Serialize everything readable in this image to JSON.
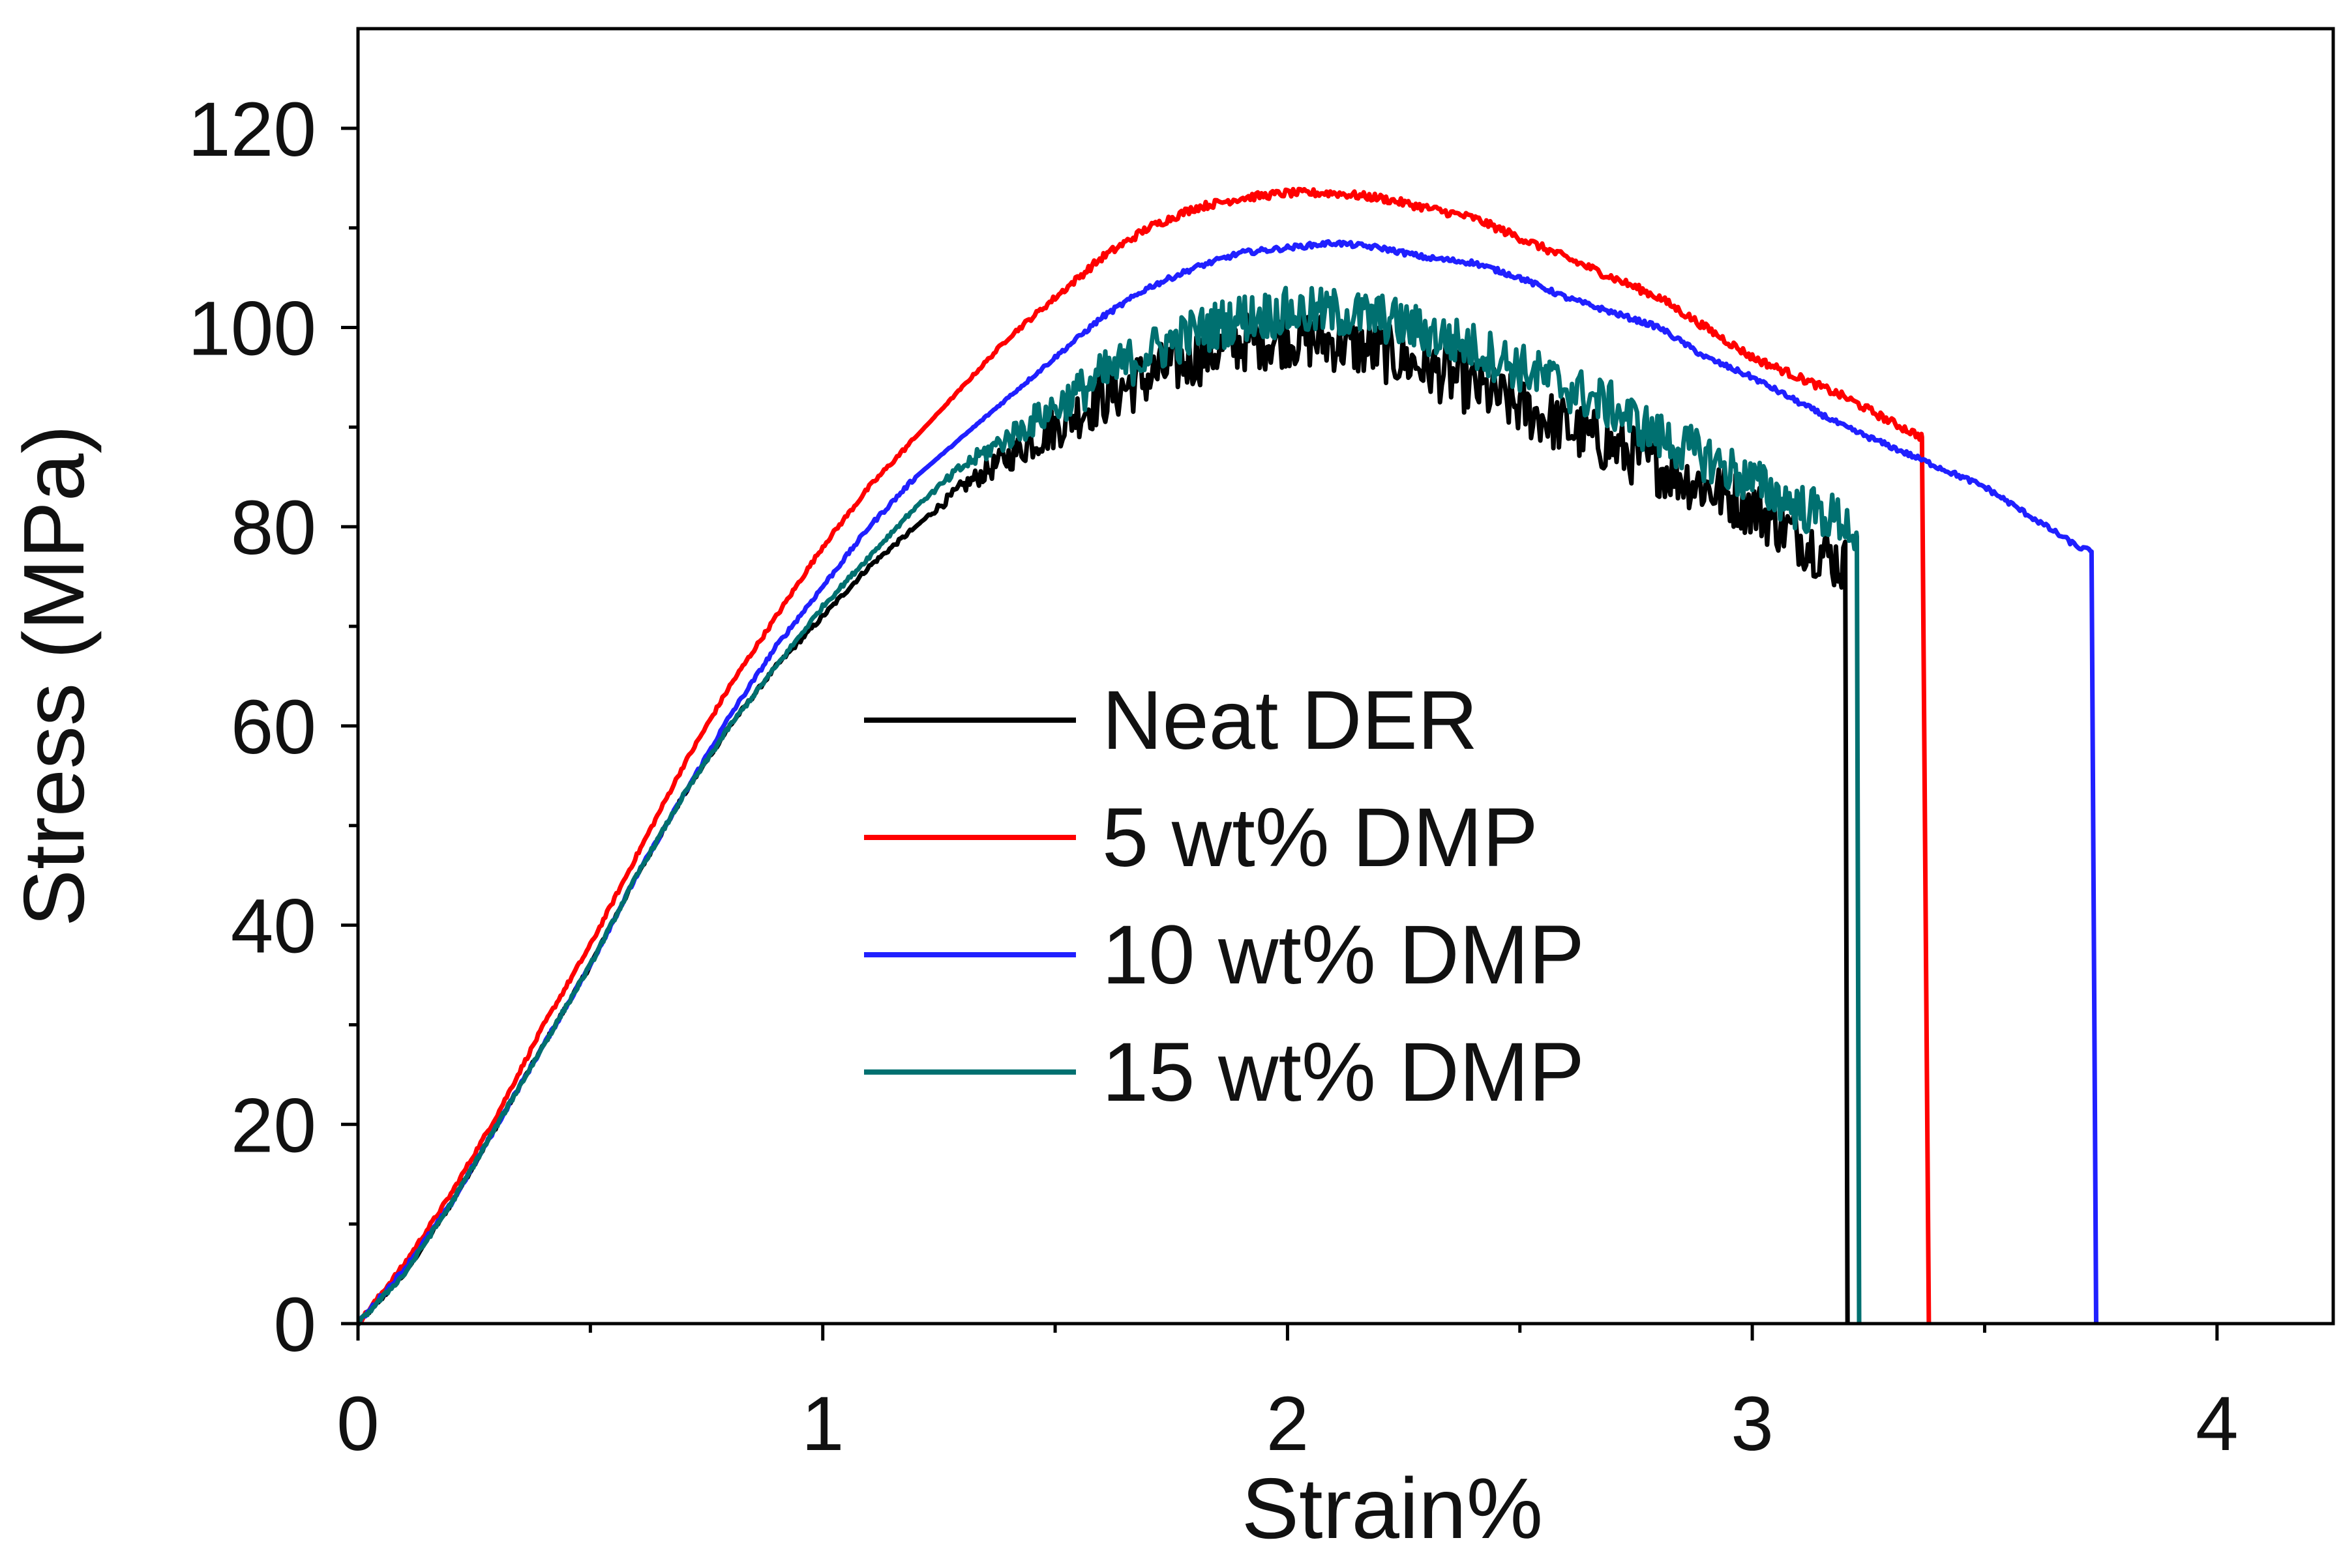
{
  "chart_data": {
    "type": "line",
    "title": "",
    "xlabel": "Strain%",
    "ylabel": "Stress (MPa)",
    "xlim": [
      0,
      4.25
    ],
    "ylim": [
      0,
      130
    ],
    "xticks": [
      0,
      1,
      2,
      3,
      4
    ],
    "xtick_labels": [
      "0",
      "1",
      "2",
      "3",
      "4"
    ],
    "yticks": [
      0,
      20,
      40,
      60,
      80,
      100,
      120
    ],
    "ytick_labels": [
      "0",
      "20",
      "40",
      "60",
      "80",
      "100",
      "120"
    ],
    "grid": false,
    "legend_position": "center",
    "series": [
      {
        "name": "Neat DER",
        "color": "#000000",
        "noise": 3.0,
        "points": [
          [
            0,
            0
          ],
          [
            0.1,
            5
          ],
          [
            0.2,
            12
          ],
          [
            0.3,
            20
          ],
          [
            0.4,
            28
          ],
          [
            0.5,
            36
          ],
          [
            0.6,
            45
          ],
          [
            0.7,
            53
          ],
          [
            0.8,
            60
          ],
          [
            0.9,
            66
          ],
          [
            1.0,
            71
          ],
          [
            1.1,
            76
          ],
          [
            1.2,
            80
          ],
          [
            1.3,
            84
          ],
          [
            1.4,
            87
          ],
          [
            1.5,
            90
          ],
          [
            1.6,
            93
          ],
          [
            1.7,
            95
          ],
          [
            1.8,
            97
          ],
          [
            1.9,
            98.5
          ],
          [
            2.0,
            99
          ],
          [
            2.1,
            98.5
          ],
          [
            2.2,
            97.5
          ],
          [
            2.3,
            96
          ],
          [
            2.4,
            94
          ],
          [
            2.5,
            92
          ],
          [
            2.6,
            90
          ],
          [
            2.7,
            88
          ],
          [
            2.8,
            86
          ],
          [
            2.9,
            84
          ],
          [
            3.0,
            82
          ],
          [
            3.1,
            79
          ],
          [
            3.2,
            76
          ],
          [
            3.205,
            0
          ]
        ]
      },
      {
        "name": "5 wt% DMP",
        "color": "#ff0000",
        "noise": 0.4,
        "points": [
          [
            0,
            0
          ],
          [
            0.1,
            6
          ],
          [
            0.2,
            13
          ],
          [
            0.3,
            21
          ],
          [
            0.4,
            30
          ],
          [
            0.5,
            38
          ],
          [
            0.6,
            47
          ],
          [
            0.7,
            56
          ],
          [
            0.8,
            64
          ],
          [
            0.9,
            71
          ],
          [
            1.0,
            78
          ],
          [
            1.1,
            84
          ],
          [
            1.2,
            89
          ],
          [
            1.3,
            94
          ],
          [
            1.4,
            99
          ],
          [
            1.5,
            103
          ],
          [
            1.6,
            107
          ],
          [
            1.7,
            110
          ],
          [
            1.8,
            112
          ],
          [
            1.9,
            113
          ],
          [
            2.0,
            113.5
          ],
          [
            2.1,
            113.5
          ],
          [
            2.2,
            113
          ],
          [
            2.3,
            112
          ],
          [
            2.4,
            111
          ],
          [
            2.5,
            109
          ],
          [
            2.6,
            107
          ],
          [
            2.7,
            105
          ],
          [
            2.8,
            103
          ],
          [
            2.9,
            100
          ],
          [
            3.0,
            97
          ],
          [
            3.1,
            95
          ],
          [
            3.2,
            93
          ],
          [
            3.3,
            90.5
          ],
          [
            3.365,
            89
          ],
          [
            3.38,
            0
          ]
        ]
      },
      {
        "name": "10 wt% DMP",
        "color": "#2020ff",
        "noise": 0.25,
        "points": [
          [
            0,
            0
          ],
          [
            0.1,
            5.5
          ],
          [
            0.2,
            12
          ],
          [
            0.3,
            20
          ],
          [
            0.4,
            28
          ],
          [
            0.5,
            36
          ],
          [
            0.6,
            45
          ],
          [
            0.7,
            53
          ],
          [
            0.8,
            61
          ],
          [
            0.9,
            68
          ],
          [
            1.0,
            74
          ],
          [
            1.1,
            80
          ],
          [
            1.2,
            85
          ],
          [
            1.3,
            89
          ],
          [
            1.4,
            93
          ],
          [
            1.5,
            97
          ],
          [
            1.6,
            101
          ],
          [
            1.7,
            104
          ],
          [
            1.8,
            106
          ],
          [
            1.9,
            107.5
          ],
          [
            2.0,
            108
          ],
          [
            2.1,
            108.5
          ],
          [
            2.2,
            108
          ],
          [
            2.3,
            107
          ],
          [
            2.4,
            106.5
          ],
          [
            2.5,
            105
          ],
          [
            2.6,
            103
          ],
          [
            2.7,
            101.5
          ],
          [
            2.8,
            100
          ],
          [
            2.9,
            97
          ],
          [
            3.0,
            95
          ],
          [
            3.1,
            92.5
          ],
          [
            3.2,
            90
          ],
          [
            3.3,
            88
          ],
          [
            3.4,
            86
          ],
          [
            3.5,
            84
          ],
          [
            3.6,
            81
          ],
          [
            3.7,
            78
          ],
          [
            3.73,
            77.5
          ],
          [
            3.74,
            0
          ]
        ]
      },
      {
        "name": "15 wt% DMP",
        "color": "#007070",
        "noise": 2.5,
        "points": [
          [
            0,
            0
          ],
          [
            0.1,
            5
          ],
          [
            0.2,
            12
          ],
          [
            0.3,
            20
          ],
          [
            0.4,
            28
          ],
          [
            0.5,
            36
          ],
          [
            0.6,
            45
          ],
          [
            0.7,
            53
          ],
          [
            0.8,
            60
          ],
          [
            0.9,
            66
          ],
          [
            1.0,
            72
          ],
          [
            1.1,
            77
          ],
          [
            1.2,
            82
          ],
          [
            1.3,
            86
          ],
          [
            1.4,
            89
          ],
          [
            1.5,
            92
          ],
          [
            1.6,
            95
          ],
          [
            1.7,
            97.5
          ],
          [
            1.8,
            99.5
          ],
          [
            1.9,
            101
          ],
          [
            2.0,
            101.5
          ],
          [
            2.1,
            101.5
          ],
          [
            2.2,
            101
          ],
          [
            2.3,
            99.5
          ],
          [
            2.4,
            98
          ],
          [
            2.5,
            96
          ],
          [
            2.6,
            94
          ],
          [
            2.7,
            92
          ],
          [
            2.8,
            89
          ],
          [
            2.9,
            87
          ],
          [
            3.0,
            84.5
          ],
          [
            3.1,
            82
          ],
          [
            3.2,
            80.5
          ],
          [
            3.225,
            79
          ],
          [
            3.23,
            0
          ]
        ]
      }
    ]
  }
}
